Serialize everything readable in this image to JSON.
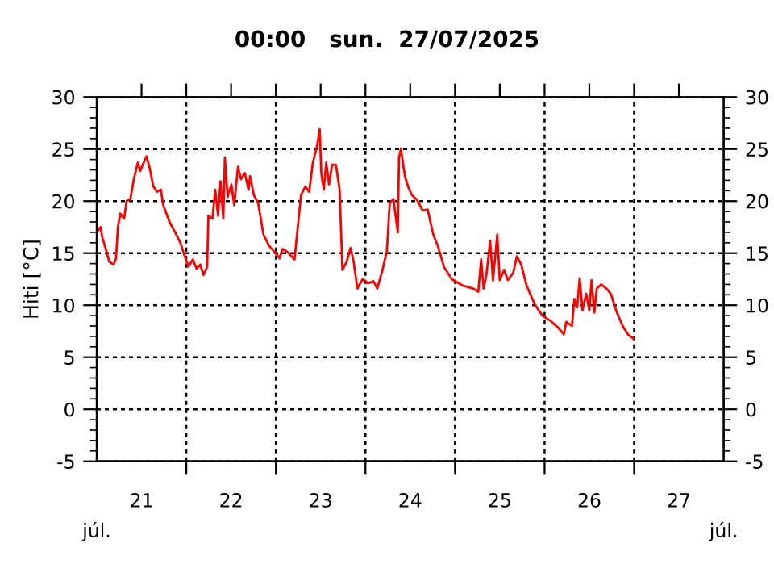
{
  "chart_data": {
    "type": "line",
    "title": "00:00   sun.  27/07/2025",
    "ylabel": "Hiti [°C]",
    "annotations": [
      "júl.",
      "júl."
    ],
    "series": [
      {
        "color": "#ff0000",
        "x": [
          "2025-07-21T00:00",
          "2025-07-21T01:00",
          "2025-07-21T01:30",
          "2025-07-21T02:45",
          "2025-07-21T03:20",
          "2025-07-21T04:30",
          "2025-07-21T05:10",
          "2025-07-21T05:40",
          "2025-07-21T06:20",
          "2025-07-21T07:20",
          "2025-07-21T08:00",
          "2025-07-21T09:00",
          "2025-07-21T10:00",
          "2025-07-21T11:00",
          "2025-07-21T11:40",
          "2025-07-21T12:20",
          "2025-07-21T13:20",
          "2025-07-21T14:10",
          "2025-07-21T15:10",
          "2025-07-21T16:10",
          "2025-07-21T17:10",
          "2025-07-21T17:50",
          "2025-07-21T19:30",
          "2025-07-21T21:00",
          "2025-07-21T22:25",
          "2025-07-21T23:35",
          "2025-07-22T00:35",
          "2025-07-22T01:45",
          "2025-07-22T02:45",
          "2025-07-22T03:45",
          "2025-07-22T04:35",
          "2025-07-22T05:35",
          "2025-07-22T05:55",
          "2025-07-22T07:00",
          "2025-07-22T07:45",
          "2025-07-22T08:30",
          "2025-07-22T09:10",
          "2025-07-22T09:55",
          "2025-07-22T10:20",
          "2025-07-22T11:05",
          "2025-07-22T12:05",
          "2025-07-22T12:50",
          "2025-07-22T13:50",
          "2025-07-22T14:40",
          "2025-07-22T15:40",
          "2025-07-22T16:40",
          "2025-07-22T17:05",
          "2025-07-22T18:05",
          "2025-07-22T19:15",
          "2025-07-22T20:40",
          "2025-07-22T22:10",
          "2025-07-22T23:40",
          "2025-07-23T01:00",
          "2025-07-23T01:45",
          "2025-07-23T03:10",
          "2025-07-23T05:00",
          "2025-07-23T05:35",
          "2025-07-23T06:45",
          "2025-07-23T07:55",
          "2025-07-23T08:55",
          "2025-07-23T09:55",
          "2025-07-23T11:05",
          "2025-07-23T11:45",
          "2025-07-23T12:10",
          "2025-07-23T12:50",
          "2025-07-23T13:30",
          "2025-07-23T14:15",
          "2025-07-23T15:05",
          "2025-07-23T16:05",
          "2025-07-23T17:05",
          "2025-07-23T17:50",
          "2025-07-23T19:00",
          "2025-07-23T20:00",
          "2025-07-23T20:50",
          "2025-07-23T21:50",
          "2025-07-23T23:15",
          "2025-07-24T00:40",
          "2025-07-24T02:10",
          "2025-07-24T03:10",
          "2025-07-24T04:35",
          "2025-07-24T05:45",
          "2025-07-24T06:30",
          "2025-07-24T07:30",
          "2025-07-24T08:40",
          "2025-07-24T09:00",
          "2025-07-24T09:30",
          "2025-07-24T10:35",
          "2025-07-24T11:25",
          "2025-07-24T12:25",
          "2025-07-24T13:50",
          "2025-07-24T15:20",
          "2025-07-24T16:40",
          "2025-07-24T18:10",
          "2025-07-24T19:35",
          "2025-07-24T21:00",
          "2025-07-24T23:10",
          "2025-07-25T02:00",
          "2025-07-25T04:50",
          "2025-07-25T06:15",
          "2025-07-25T07:00",
          "2025-07-25T07:40",
          "2025-07-25T08:25",
          "2025-07-25T09:25",
          "2025-07-25T10:10",
          "2025-07-25T11:20",
          "2025-07-25T12:00",
          "2025-07-25T13:10",
          "2025-07-25T14:10",
          "2025-07-25T15:35",
          "2025-07-25T16:35",
          "2025-07-25T17:45",
          "2025-07-25T19:10",
          "2025-07-25T21:20",
          "2025-07-25T23:25",
          "2025-07-26T01:35",
          "2025-07-26T03:45",
          "2025-07-26T05:10",
          "2025-07-26T05:50",
          "2025-07-26T07:20",
          "2025-07-26T08:00",
          "2025-07-26T08:45",
          "2025-07-26T09:25",
          "2025-07-26T10:10",
          "2025-07-26T11:10",
          "2025-07-26T12:00",
          "2025-07-26T12:35",
          "2025-07-26T13:20",
          "2025-07-26T14:00",
          "2025-07-26T15:10",
          "2025-07-26T16:35",
          "2025-07-26T17:45",
          "2025-07-26T19:10",
          "2025-07-26T20:55",
          "2025-07-26T22:20",
          "2025-07-26T23:45"
        ],
        "values": [
          17.0,
          17.5,
          16.5,
          15.0,
          14.2,
          13.9,
          14.5,
          17.5,
          18.8,
          18.3,
          20.0,
          20.2,
          22.2,
          23.7,
          22.9,
          23.5,
          24.3,
          23.2,
          21.4,
          20.9,
          21.1,
          19.6,
          18.0,
          17.0,
          16.0,
          14.7,
          13.7,
          14.4,
          13.5,
          13.9,
          12.9,
          13.7,
          18.6,
          18.3,
          21.1,
          18.6,
          21.9,
          18.3,
          24.2,
          20.4,
          21.6,
          19.6,
          23.3,
          22.1,
          22.7,
          21.1,
          22.4,
          20.6,
          19.8,
          16.8,
          15.7,
          15.1,
          14.5,
          15.4,
          15.1,
          14.4,
          16.5,
          20.6,
          21.4,
          20.9,
          23.7,
          25.4,
          26.9,
          22.7,
          21.1,
          23.7,
          21.6,
          23.5,
          23.5,
          21.1,
          13.4,
          14.2,
          15.5,
          14.2,
          11.6,
          12.5,
          12.1,
          12.3,
          11.6,
          13.4,
          15.2,
          19.8,
          20.2,
          17.0,
          24.2,
          25.0,
          22.4,
          21.4,
          20.6,
          20.1,
          19.1,
          19.2,
          16.8,
          15.5,
          13.7,
          12.5,
          11.9,
          11.6,
          11.3,
          14.4,
          11.6,
          12.9,
          16.2,
          12.4,
          16.8,
          12.4,
          13.4,
          12.4,
          13.1,
          14.7,
          13.9,
          11.9,
          10.1,
          9.0,
          8.5,
          7.8,
          7.2,
          8.4,
          8.0,
          10.6,
          9.8,
          12.6,
          9.5,
          11.1,
          9.5,
          12.4,
          9.3,
          11.6,
          12.0,
          11.6,
          11.1,
          9.5,
          8.0,
          7.2,
          6.8
        ]
      }
    ],
    "xlim": [
      "2025-07-21",
      "2025-07-28"
    ],
    "xticks": [
      {
        "value": "2025-07-21T12:00",
        "label": "21"
      },
      {
        "value": "2025-07-22T12:00",
        "label": "22"
      },
      {
        "value": "2025-07-23T12:00",
        "label": "23"
      },
      {
        "value": "2025-07-24T12:00",
        "label": "24"
      },
      {
        "value": "2025-07-25T12:00",
        "label": "25"
      },
      {
        "value": "2025-07-26T12:00",
        "label": "26"
      },
      {
        "value": "2025-07-27T12:00",
        "label": "27"
      },
      {
        "value": "2025-07-22",
        "label": null
      },
      {
        "value": "2025-07-23",
        "label": null
      },
      {
        "value": "2025-07-24",
        "label": null
      },
      {
        "value": "2025-07-25",
        "label": null
      },
      {
        "value": "2025-07-26",
        "label": null
      },
      {
        "value": "2025-07-27",
        "label": null
      }
    ],
    "ylim": [
      -5,
      30
    ],
    "yticks": [
      -5,
      0,
      5,
      10,
      15,
      20,
      25,
      30
    ],
    "y2lim": [
      -5,
      30
    ],
    "y2ticks": [
      -5,
      0,
      5,
      10,
      15,
      20,
      25,
      30
    ],
    "grid": true,
    "legend": false,
    "marker": "none",
    "line_style": "solid"
  }
}
